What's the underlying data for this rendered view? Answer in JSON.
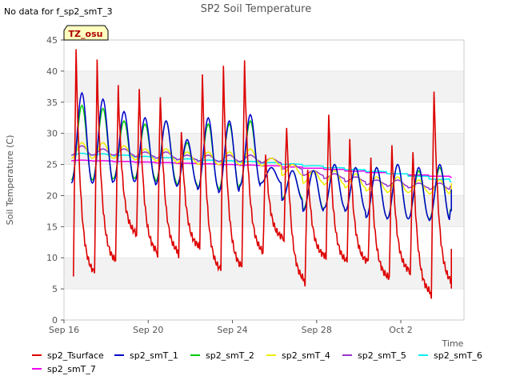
{
  "chart_data": {
    "type": "line",
    "title": "SP2 Soil Temperature",
    "nodata_note": "No data for f_sp2_smT_3",
    "tz_badge": "TZ_osu",
    "xlabel": "Time",
    "ylabel": "Soil Temperature (C)",
    "ylim": [
      0,
      45
    ],
    "xlim": [
      0,
      19
    ],
    "yticks": [
      0,
      5,
      10,
      15,
      20,
      25,
      30,
      35,
      40,
      45
    ],
    "xticks": [
      {
        "value": 0,
        "label": "Sep 16"
      },
      {
        "value": 4,
        "label": "Sep 20"
      },
      {
        "value": 8,
        "label": "Sep 24"
      },
      {
        "value": 12,
        "label": "Sep 28"
      },
      {
        "value": 16,
        "label": "Oct 2"
      }
    ],
    "series": [
      {
        "name": "sp2_Tsurface",
        "color": "#dd0000",
        "days": [
          {
            "min": 7.0,
            "max": 44.0
          },
          {
            "min": 9.0,
            "max": 42.0
          },
          {
            "min": 13.5,
            "max": 38.0
          },
          {
            "min": 10.5,
            "max": 38.0
          },
          {
            "min": 10.5,
            "max": 37.0
          },
          {
            "min": 11.5,
            "max": 31.0
          },
          {
            "min": 7.5,
            "max": 40.0
          },
          {
            "min": 8.0,
            "max": 41.0
          },
          {
            "min": 10.5,
            "max": 42.0
          },
          {
            "min": 13.0,
            "max": 27.0
          },
          {
            "min": 6.0,
            "max": 32.0
          },
          {
            "min": 10.0,
            "max": 25.0
          },
          {
            "min": 9.0,
            "max": 33.5
          },
          {
            "min": 9.0,
            "max": 29.0
          },
          {
            "min": 6.5,
            "max": 26.0
          },
          {
            "min": 7.5,
            "max": 28.5
          },
          {
            "min": 4.0,
            "max": 28.0
          },
          {
            "min": 5.5,
            "max": 38.0
          },
          {
            "min": 10.5,
            "max": 11.0
          }
        ]
      },
      {
        "name": "sp2_smT_1",
        "color": "#0000cc",
        "days": [
          {
            "min": 22.0,
            "max": 36.5
          },
          {
            "min": 22.0,
            "max": 35.5
          },
          {
            "min": 22.5,
            "max": 33.5
          },
          {
            "min": 22.0,
            "max": 32.5
          },
          {
            "min": 21.5,
            "max": 32.0
          },
          {
            "min": 21.5,
            "max": 29.0
          },
          {
            "min": 20.5,
            "max": 32.5
          },
          {
            "min": 20.5,
            "max": 32.0
          },
          {
            "min": 22.5,
            "max": 33.0
          },
          {
            "min": 21.5,
            "max": 24.5
          },
          {
            "min": 17.0,
            "max": 24.0
          },
          {
            "min": 18.0,
            "max": 24.0
          },
          {
            "min": 18.0,
            "max": 25.0
          },
          {
            "min": 17.0,
            "max": 24.5
          },
          {
            "min": 16.0,
            "max": 24.5
          },
          {
            "min": 16.5,
            "max": 25.0
          },
          {
            "min": 16.0,
            "max": 24.5
          },
          {
            "min": 16.0,
            "max": 25.0
          },
          {
            "min": 19.0,
            "max": 21.0
          }
        ]
      },
      {
        "name": "sp2_smT_2",
        "color": "#00cc00",
        "days": [
          {
            "min": 22.5,
            "max": 34.5
          },
          {
            "min": 22.5,
            "max": 34.0
          },
          {
            "min": 23.0,
            "max": 32.0
          },
          {
            "min": 22.5,
            "max": 31.5
          },
          {
            "min": 22.0,
            "max": 32.0
          },
          {
            "min": 21.5,
            "max": 28.5
          },
          {
            "min": 21.0,
            "max": 31.5
          },
          {
            "min": 21.0,
            "max": 31.5
          },
          {
            "min": 22.5,
            "max": 32.0
          },
          {
            "min": 21.5,
            "max": 24.5
          },
          {
            "min": 17.5,
            "max": 24.0
          },
          {
            "min": 18.0,
            "max": 24.0
          },
          {
            "min": 18.0,
            "max": 25.0
          },
          {
            "min": 17.0,
            "max": 24.5
          },
          {
            "min": 16.0,
            "max": 24.5
          },
          {
            "min": 16.5,
            "max": 25.0
          },
          {
            "min": 16.0,
            "max": 24.0
          },
          {
            "min": 16.5,
            "max": 24.5
          },
          {
            "min": 19.0,
            "max": 21.0
          }
        ]
      },
      {
        "name": "sp2_smT_4",
        "color": "#eeee00",
        "days": [
          {
            "min": 26.0,
            "max": 28.5
          },
          {
            "min": 26.0,
            "max": 28.5
          },
          {
            "min": 26.0,
            "max": 28.0
          },
          {
            "min": 25.5,
            "max": 27.5
          },
          {
            "min": 25.5,
            "max": 27.5
          },
          {
            "min": 25.0,
            "max": 27.0
          },
          {
            "min": 25.0,
            "max": 27.0
          },
          {
            "min": 25.0,
            "max": 27.0
          },
          {
            "min": 25.0,
            "max": 27.5
          },
          {
            "min": 24.5,
            "max": 26.0
          },
          {
            "min": 22.0,
            "max": 25.0
          },
          {
            "min": 22.0,
            "max": 24.0
          },
          {
            "min": 21.5,
            "max": 24.0
          },
          {
            "min": 21.0,
            "max": 23.5
          },
          {
            "min": 20.5,
            "max": 23.0
          },
          {
            "min": 20.5,
            "max": 23.0
          },
          {
            "min": 20.5,
            "max": 22.5
          },
          {
            "min": 20.0,
            "max": 22.5
          },
          {
            "min": 21.5,
            "max": 22.0
          }
        ]
      },
      {
        "name": "sp2_smT_5",
        "color": "#9933cc",
        "days": [
          {
            "min": 26.5,
            "max": 28.0
          },
          {
            "min": 26.5,
            "max": 27.5
          },
          {
            "min": 26.5,
            "max": 27.5
          },
          {
            "min": 26.0,
            "max": 27.0
          },
          {
            "min": 26.0,
            "max": 27.0
          },
          {
            "min": 25.5,
            "max": 26.5
          },
          {
            "min": 25.5,
            "max": 26.5
          },
          {
            "min": 25.5,
            "max": 26.5
          },
          {
            "min": 25.5,
            "max": 26.5
          },
          {
            "min": 25.0,
            "max": 26.0
          },
          {
            "min": 23.5,
            "max": 25.0
          },
          {
            "min": 23.0,
            "max": 24.0
          },
          {
            "min": 22.5,
            "max": 23.5
          },
          {
            "min": 22.0,
            "max": 23.0
          },
          {
            "min": 21.5,
            "max": 22.5
          },
          {
            "min": 21.5,
            "max": 22.5
          },
          {
            "min": 21.0,
            "max": 22.0
          },
          {
            "min": 21.0,
            "max": 22.0
          },
          {
            "min": 22.0,
            "max": 22.0
          }
        ]
      },
      {
        "name": "sp2_smT_6",
        "color": "#00eeee",
        "days": [
          {
            "min": 26.5,
            "max": 26.8
          },
          {
            "min": 26.5,
            "max": 26.7
          },
          {
            "min": 26.3,
            "max": 26.5
          },
          {
            "min": 26.1,
            "max": 26.3
          },
          {
            "min": 25.9,
            "max": 26.1
          },
          {
            "min": 25.7,
            "max": 25.9
          },
          {
            "min": 25.5,
            "max": 25.7
          },
          {
            "min": 25.4,
            "max": 25.6
          },
          {
            "min": 25.3,
            "max": 25.5
          },
          {
            "min": 25.1,
            "max": 25.3
          },
          {
            "min": 24.9,
            "max": 25.1
          },
          {
            "min": 24.6,
            "max": 24.8
          },
          {
            "min": 24.3,
            "max": 24.5
          },
          {
            "min": 24.0,
            "max": 24.2
          },
          {
            "min": 23.7,
            "max": 23.9
          },
          {
            "min": 23.3,
            "max": 23.5
          },
          {
            "min": 22.9,
            "max": 23.1
          },
          {
            "min": 22.4,
            "max": 22.6
          },
          {
            "min": 22.0,
            "max": 22.2
          }
        ]
      },
      {
        "name": "sp2_smT_7",
        "color": "#ee00ee",
        "days": [
          {
            "min": 25.6,
            "max": 25.7
          },
          {
            "min": 25.5,
            "max": 25.6
          },
          {
            "min": 25.4,
            "max": 25.5
          },
          {
            "min": 25.3,
            "max": 25.4
          },
          {
            "min": 25.2,
            "max": 25.3
          },
          {
            "min": 25.1,
            "max": 25.2
          },
          {
            "min": 25.0,
            "max": 25.1
          },
          {
            "min": 24.9,
            "max": 25.0
          },
          {
            "min": 24.8,
            "max": 24.9
          },
          {
            "min": 24.7,
            "max": 24.8
          },
          {
            "min": 24.5,
            "max": 24.6
          },
          {
            "min": 24.3,
            "max": 24.4
          },
          {
            "min": 24.1,
            "max": 24.2
          },
          {
            "min": 23.8,
            "max": 23.9
          },
          {
            "min": 23.6,
            "max": 23.7
          },
          {
            "min": 23.4,
            "max": 23.5
          },
          {
            "min": 23.2,
            "max": 23.3
          },
          {
            "min": 23.0,
            "max": 23.1
          },
          {
            "min": 22.9,
            "max": 23.0
          }
        ]
      }
    ]
  }
}
